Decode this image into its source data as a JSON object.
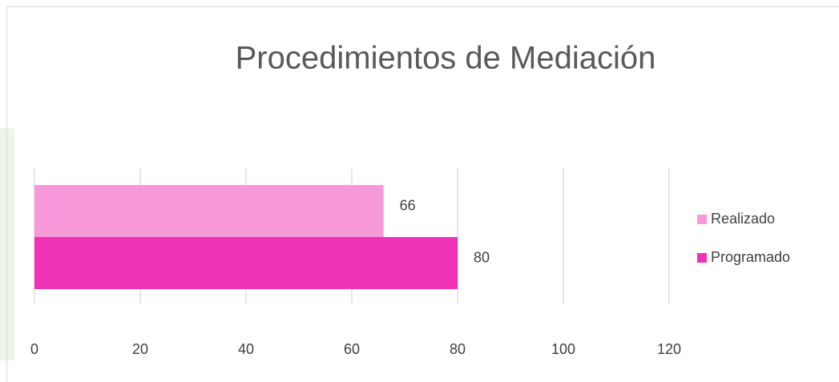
{
  "chart_data": {
    "type": "bar",
    "orientation": "horizontal",
    "title": "Procedimientos de Mediación",
    "categories": [
      null
    ],
    "series": [
      {
        "name": "Realizado",
        "color": "#f799d8",
        "values": [
          66
        ]
      },
      {
        "name": "Programado",
        "color": "#f032b4",
        "values": [
          80
        ]
      }
    ],
    "xlim": [
      0,
      120
    ],
    "xticks": [
      0,
      20,
      40,
      60,
      80,
      100,
      120
    ],
    "grid": true,
    "legend": "right"
  }
}
